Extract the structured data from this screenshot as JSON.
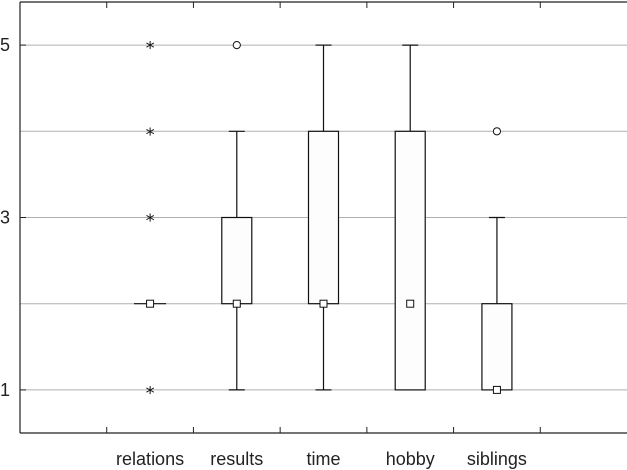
{
  "chart_data": {
    "type": "boxplot",
    "title": "",
    "xlabel": "",
    "ylabel": "",
    "ylim": [
      0.5,
      5.5
    ],
    "yticks": [
      1,
      3,
      5
    ],
    "ytick_labels": [
      "1",
      "3",
      "5"
    ],
    "grid": true,
    "grid_values": [
      1,
      2,
      3,
      4,
      5
    ],
    "categories": [
      "relations",
      "results",
      "time",
      "hobby",
      "siblings"
    ],
    "boxes": [
      {
        "category": "relations",
        "q1": 2,
        "q3": 2,
        "whisker_low": 2,
        "whisker_high": 2,
        "marker": 2,
        "outliers": [],
        "extremes": [
          1,
          3,
          4,
          5
        ]
      },
      {
        "category": "results",
        "q1": 2,
        "q3": 3,
        "whisker_low": 1,
        "whisker_high": 4,
        "marker": 2,
        "outliers": [
          5
        ],
        "extremes": []
      },
      {
        "category": "time",
        "q1": 2,
        "q3": 4,
        "whisker_low": 1,
        "whisker_high": 5,
        "marker": 2,
        "outliers": [],
        "extremes": []
      },
      {
        "category": "hobby",
        "q1": 1,
        "q3": 4,
        "whisker_low": 1,
        "whisker_high": 5,
        "marker": 2,
        "outliers": [],
        "extremes": []
      },
      {
        "category": "siblings",
        "q1": 1,
        "q3": 2,
        "whisker_low": 1,
        "whisker_high": 3,
        "marker": 1,
        "outliers": [
          4
        ],
        "extremes": []
      }
    ],
    "colors": {
      "axis": "#222222",
      "grid": "#b0b0b0",
      "box_fill": "#fdfdfd",
      "stroke": "#111111"
    }
  }
}
